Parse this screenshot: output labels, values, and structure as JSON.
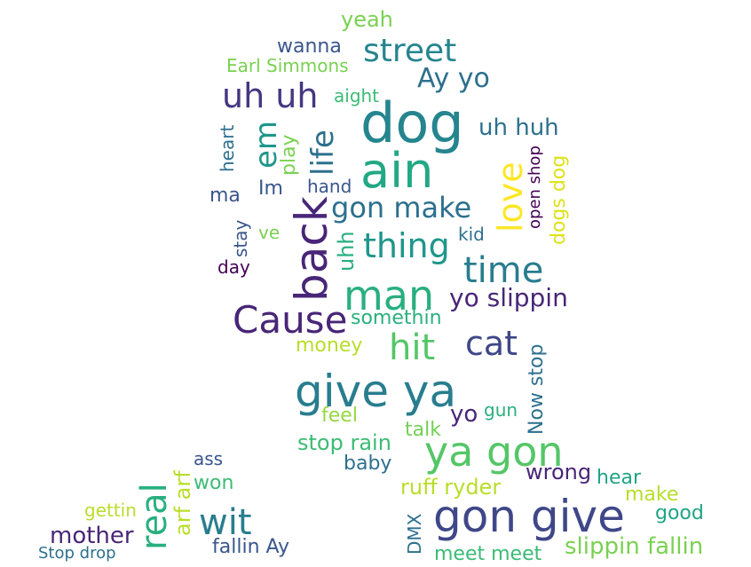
{
  "words": [
    {
      "text": "yeah",
      "color": "#7ad151"
    },
    {
      "text": "wanna",
      "color": "#39568c"
    },
    {
      "text": "street",
      "color": "#25858e"
    },
    {
      "text": "Earl Simmons",
      "color": "#7ad151"
    },
    {
      "text": "Ay yo",
      "color": "#2d708e"
    },
    {
      "text": "uh uh",
      "color": "#453781"
    },
    {
      "text": "aight",
      "color": "#3cbb75"
    },
    {
      "text": "dog",
      "color": "#25858e"
    },
    {
      "text": "uh huh",
      "color": "#2d708e"
    },
    {
      "text": "heart",
      "color": "#2d708e"
    },
    {
      "text": "em",
      "color": "#1f968b"
    },
    {
      "text": "play",
      "color": "#7ad151"
    },
    {
      "text": "life",
      "color": "#2d708e"
    },
    {
      "text": "ain",
      "color": "#22a884"
    },
    {
      "text": "love",
      "color": "#fde725"
    },
    {
      "text": "open shop",
      "color": "#440154"
    },
    {
      "text": "dogs dog",
      "color": "#dce319"
    },
    {
      "text": "Im",
      "color": "#39568c"
    },
    {
      "text": "hand",
      "color": "#39568c"
    },
    {
      "text": "ma",
      "color": "#39568c"
    },
    {
      "text": "gon make",
      "color": "#2d708e"
    },
    {
      "text": "back",
      "color": "#482677"
    },
    {
      "text": "stay",
      "color": "#39568c"
    },
    {
      "text": "ve",
      "color": "#7ad151"
    },
    {
      "text": "uhh",
      "color": "#29af7f"
    },
    {
      "text": "thing",
      "color": "#1f968b"
    },
    {
      "text": "kid",
      "color": "#2d708e"
    },
    {
      "text": "day",
      "color": "#440154"
    },
    {
      "text": "time",
      "color": "#287d8e"
    },
    {
      "text": "man",
      "color": "#29af7f"
    },
    {
      "text": "yo slippin",
      "color": "#482677"
    },
    {
      "text": "Cause",
      "color": "#482677"
    },
    {
      "text": "somethin",
      "color": "#29af7f"
    },
    {
      "text": "money",
      "color": "#b8de29"
    },
    {
      "text": "hit",
      "color": "#55c667"
    },
    {
      "text": "cat",
      "color": "#3f4788"
    },
    {
      "text": "Now stop",
      "color": "#2d708e"
    },
    {
      "text": "give ya",
      "color": "#287d8e"
    },
    {
      "text": "feel",
      "color": "#95d840"
    },
    {
      "text": "yo",
      "color": "#482677"
    },
    {
      "text": "gun",
      "color": "#29af7f"
    },
    {
      "text": "talk",
      "color": "#73d055"
    },
    {
      "text": "stop rain",
      "color": "#3cbb75"
    },
    {
      "text": "ya gon",
      "color": "#55c667"
    },
    {
      "text": "baby",
      "color": "#2d708e"
    },
    {
      "text": "ass",
      "color": "#39568c"
    },
    {
      "text": "won",
      "color": "#3cbb75"
    },
    {
      "text": "arf arf",
      "color": "#b8de29"
    },
    {
      "text": "real",
      "color": "#29af7f"
    },
    {
      "text": "wrong",
      "color": "#482677"
    },
    {
      "text": "hear",
      "color": "#20a386"
    },
    {
      "text": "ruff ryder",
      "color": "#b8de29"
    },
    {
      "text": "make",
      "color": "#b8de29"
    },
    {
      "text": "gettin",
      "color": "#b8de29"
    },
    {
      "text": "wit",
      "color": "#287d8e"
    },
    {
      "text": "DMX",
      "color": "#2d708e"
    },
    {
      "text": "gon give",
      "color": "#3f4788"
    },
    {
      "text": "good",
      "color": "#20a386"
    },
    {
      "text": "mother",
      "color": "#482677"
    },
    {
      "text": "fallin Ay",
      "color": "#39568c"
    },
    {
      "text": "slippin fallin",
      "color": "#7ad151"
    },
    {
      "text": "Stop drop",
      "color": "#2d708e"
    },
    {
      "text": "meet meet",
      "color": "#3cbb75"
    }
  ]
}
